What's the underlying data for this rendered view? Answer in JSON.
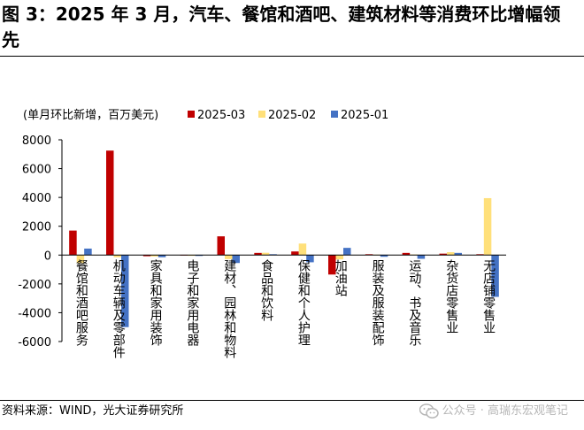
{
  "header": {
    "title": "图 3：2025 年 3 月，汽车、餐馆和酒吧、建筑材料等消费环比增幅领先"
  },
  "footer": {
    "source": "资料来源：WIND，光大证券研究所",
    "watermark": "公众号 · 高瑞东宏观笔记"
  },
  "chart_data": {
    "type": "bar",
    "unit_label": "(单月环比新增，百万美元)",
    "categories": [
      "餐馆和酒吧服务",
      "机动车辆及零部件",
      "家具和家用装饰",
      "电子和家用电器",
      "建材、园林和物料",
      "食品和饮料",
      "保健和个人护理",
      "加油站",
      "服装及服装配饰",
      "运动、书及音乐",
      "杂货店零售业",
      "无店铺零售业"
    ],
    "series": [
      {
        "name": "2025-03",
        "color": "#c00000",
        "values": [
          1700,
          7250,
          -80,
          20,
          1300,
          150,
          250,
          -1350,
          60,
          150,
          100,
          60
        ]
      },
      {
        "name": "2025-02",
        "color": "#ffe07a",
        "values": [
          -550,
          -150,
          -100,
          -30,
          -280,
          160,
          800,
          -300,
          30,
          40,
          200,
          3950
        ]
      },
      {
        "name": "2025-01",
        "color": "#4472c4",
        "values": [
          450,
          -5000,
          -150,
          -60,
          -550,
          60,
          -500,
          500,
          -120,
          -260,
          150,
          -2900
        ]
      }
    ],
    "ylim": [
      -6000,
      8000
    ],
    "yticks": [
      8000,
      6000,
      4000,
      2000,
      0,
      -2000,
      -4000,
      -6000
    ],
    "legend_position": "top",
    "grid": false
  }
}
